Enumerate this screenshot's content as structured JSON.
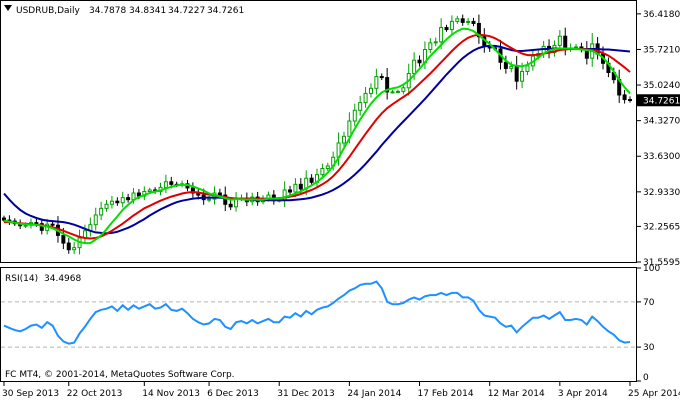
{
  "header": {
    "symbol": "USDRUB,Daily",
    "ohlc": [
      "34.7878",
      "34.8341",
      "34.7227",
      "34.7261"
    ]
  },
  "rsi_header": {
    "label": "RSI(14)",
    "value": "34.4968"
  },
  "copyright": "FC MT4, © 2001-2014, MetaQuotes Software Corp.",
  "current_price_label": "34.7261",
  "colors": {
    "bull_candle": "#00a000",
    "bear_candle": "#000000",
    "ma_fast": "#00e000",
    "ma_mid": "#e00000",
    "ma_slow": "#0000a0",
    "rsi_line": "#1e90ff",
    "rsi_levels": "#b4b4b4",
    "frame": "#000000"
  },
  "chart_data": [
    {
      "type": "candlestick",
      "title": "USDRUB,Daily",
      "x_tick_labels": [
        "30 Sep 2013",
        "22 Oct 2013",
        "14 Nov 2013",
        "6 Dec 2013",
        "31 Dec 2013",
        "24 Jan 2014",
        "17 Feb 2014",
        "12 Mar 2014",
        "3 Apr 2014",
        "25 Apr 2014"
      ],
      "y_tick_labels": [
        "36.4180",
        "35.7210",
        "35.0240",
        "34.3270",
        "33.6300",
        "32.9330",
        "32.2565",
        "31.5595"
      ],
      "ylim": [
        31.5595,
        36.65
      ],
      "close": [
        32.38,
        32.36,
        32.31,
        32.27,
        32.28,
        32.33,
        32.31,
        32.18,
        32.3,
        32.28,
        32.08,
        31.93,
        31.8,
        31.84,
        32.03,
        32.17,
        32.29,
        32.48,
        32.61,
        32.69,
        32.75,
        32.72,
        32.82,
        32.78,
        32.91,
        32.85,
        32.94,
        32.97,
        32.94,
        33.02,
        33.13,
        33.08,
        33.07,
        33.09,
        33.01,
        32.91,
        32.87,
        32.78,
        32.79,
        32.91,
        32.87,
        32.69,
        32.64,
        32.81,
        32.81,
        32.74,
        32.83,
        32.74,
        32.8,
        32.87,
        32.76,
        32.77,
        32.97,
        32.93,
        33.08,
        32.99,
        33.2,
        33.12,
        33.27,
        33.39,
        33.44,
        33.61,
        33.89,
        34.02,
        34.32,
        34.53,
        34.68,
        34.86,
        34.96,
        35.19,
        35.17,
        34.89,
        34.89,
        34.9,
        34.97,
        35.25,
        35.51,
        35.46,
        35.72,
        35.85,
        35.87,
        36.15,
        36.11,
        36.27,
        36.32,
        36.25,
        36.27,
        36.23,
        35.97,
        35.79,
        35.75,
        35.73,
        35.47,
        35.35,
        35.39,
        35.1,
        35.29,
        35.4,
        35.59,
        35.64,
        35.78,
        35.66,
        35.8,
        35.98,
        35.74,
        35.75,
        35.77,
        35.73,
        35.55,
        35.83,
        35.63,
        35.45,
        35.27,
        35.13,
        34.83,
        34.74,
        34.73
      ],
      "ma_fast_approx": [
        32.37,
        32.35,
        32.33,
        32.31,
        32.3,
        32.29,
        32.29,
        32.27,
        32.25,
        32.22,
        32.17,
        32.11,
        32.06,
        32.0,
        31.95,
        31.93,
        31.93,
        32.0,
        32.08,
        32.2,
        32.33,
        32.45,
        32.58,
        32.68,
        32.77,
        32.83,
        32.87,
        32.91,
        32.94,
        32.96,
        33.0,
        33.03,
        33.06,
        33.07,
        33.07,
        33.04,
        33.0,
        32.96,
        32.9,
        32.87,
        32.84,
        32.81,
        32.78,
        32.79,
        32.79,
        32.78,
        32.79,
        32.78,
        32.78,
        32.8,
        32.8,
        32.8,
        32.83,
        32.86,
        32.9,
        32.94,
        33.0,
        33.06,
        33.13,
        33.21,
        33.31,
        33.44,
        33.6,
        33.79,
        33.98,
        34.17,
        34.35,
        34.51,
        34.66,
        34.78,
        34.88,
        34.93,
        34.96,
        34.98,
        35.03,
        35.11,
        35.22,
        35.34,
        35.47,
        35.59,
        35.7,
        35.81,
        35.92,
        36.01,
        36.08,
        36.13,
        36.12,
        36.08,
        36.0,
        35.91,
        35.83,
        35.72,
        35.61,
        35.5,
        35.42,
        35.4,
        35.39,
        35.42,
        35.48,
        35.56,
        35.64,
        35.7,
        35.73,
        35.74,
        35.74,
        35.74,
        35.73,
        35.72,
        35.71,
        35.69,
        35.64,
        35.56,
        35.44,
        35.29,
        35.12,
        34.98,
        34.86
      ],
      "ma_mid_approx": [
        32.34,
        32.34,
        32.33,
        32.32,
        32.31,
        32.3,
        32.29,
        32.28,
        32.26,
        32.24,
        32.21,
        32.17,
        32.13,
        32.09,
        32.05,
        32.03,
        32.02,
        32.03,
        32.06,
        32.11,
        32.17,
        32.24,
        32.31,
        32.39,
        32.47,
        32.54,
        32.61,
        32.66,
        32.71,
        32.76,
        32.8,
        32.84,
        32.87,
        32.9,
        32.92,
        32.93,
        32.92,
        32.9,
        32.88,
        32.87,
        32.85,
        32.83,
        32.81,
        32.8,
        32.8,
        32.8,
        32.8,
        32.8,
        32.8,
        32.8,
        32.8,
        32.81,
        32.82,
        32.84,
        32.86,
        32.89,
        32.93,
        32.97,
        33.02,
        33.08,
        33.15,
        33.24,
        33.35,
        33.48,
        33.62,
        33.77,
        33.92,
        34.07,
        34.21,
        34.35,
        34.47,
        34.57,
        34.65,
        34.72,
        34.79,
        34.86,
        34.95,
        35.05,
        35.15,
        35.25,
        35.36,
        35.47,
        35.58,
        35.69,
        35.79,
        35.88,
        35.95,
        35.99,
        36.01,
        36.0,
        35.98,
        35.94,
        35.88,
        35.81,
        35.75,
        35.69,
        35.64,
        35.61,
        35.61,
        35.62,
        35.64,
        35.66,
        35.68,
        35.71,
        35.72,
        35.73,
        35.73,
        35.73,
        35.72,
        35.71,
        35.69,
        35.65,
        35.6,
        35.53,
        35.45,
        35.37,
        35.28
      ],
      "ma_slow_approx": [
        32.9,
        32.78,
        32.67,
        32.58,
        32.51,
        32.46,
        32.42,
        32.39,
        32.37,
        32.36,
        32.35,
        32.34,
        32.32,
        32.29,
        32.25,
        32.21,
        32.17,
        32.14,
        32.13,
        32.12,
        32.13,
        32.15,
        32.19,
        32.23,
        32.28,
        32.34,
        32.4,
        32.47,
        32.53,
        32.59,
        32.64,
        32.69,
        32.73,
        32.76,
        32.78,
        32.8,
        32.81,
        32.82,
        32.82,
        32.82,
        32.82,
        32.81,
        32.81,
        32.8,
        32.79,
        32.78,
        32.78,
        32.77,
        32.77,
        32.77,
        32.77,
        32.77,
        32.77,
        32.77,
        32.78,
        32.79,
        32.8,
        32.82,
        32.85,
        32.88,
        32.92,
        32.97,
        33.03,
        33.1,
        33.18,
        33.27,
        33.37,
        33.48,
        33.6,
        33.72,
        33.85,
        33.97,
        34.09,
        34.2,
        34.31,
        34.42,
        34.53,
        34.64,
        34.75,
        34.87,
        34.99,
        35.11,
        35.23,
        35.34,
        35.45,
        35.55,
        35.63,
        35.7,
        35.75,
        35.78,
        35.79,
        35.79,
        35.77,
        35.74,
        35.71,
        35.69,
        35.69,
        35.7,
        35.71,
        35.72,
        35.73,
        35.73,
        35.74,
        35.74,
        35.74,
        35.74,
        35.73,
        35.73,
        35.73,
        35.73,
        35.73,
        35.72,
        35.72,
        35.71,
        35.7,
        35.69,
        35.68
      ],
      "grid": false
    },
    {
      "type": "line",
      "title": "RSI(14) 34.4968",
      "y_tick_labels": [
        "100",
        "70",
        "30",
        "0"
      ],
      "ylim": [
        0,
        100
      ],
      "levels": [
        70,
        30
      ],
      "series": [
        {
          "name": "RSI(14)",
          "values": [
            49,
            47,
            45,
            44,
            46,
            49,
            50,
            47,
            52,
            49,
            40,
            35,
            33,
            34,
            42,
            48,
            55,
            61,
            63,
            64,
            66,
            62,
            67,
            63,
            67,
            64,
            66,
            68,
            64,
            65,
            68,
            63,
            62,
            64,
            60,
            55,
            52,
            50,
            51,
            55,
            54,
            48,
            46,
            52,
            53,
            51,
            54,
            51,
            53,
            55,
            52,
            52,
            57,
            56,
            60,
            57,
            62,
            59,
            63,
            65,
            66,
            69,
            73,
            76,
            80,
            82,
            85,
            86,
            86,
            88,
            82,
            70,
            68,
            68,
            69,
            72,
            74,
            72,
            75,
            76,
            76,
            78,
            76,
            78,
            78,
            74,
            74,
            71,
            63,
            58,
            57,
            56,
            51,
            48,
            49,
            43,
            48,
            52,
            56,
            56,
            58,
            55,
            58,
            61,
            54,
            54,
            55,
            54,
            50,
            57,
            53,
            48,
            44,
            41,
            36,
            34,
            34.4968
          ]
        }
      ],
      "grid": false
    }
  ]
}
